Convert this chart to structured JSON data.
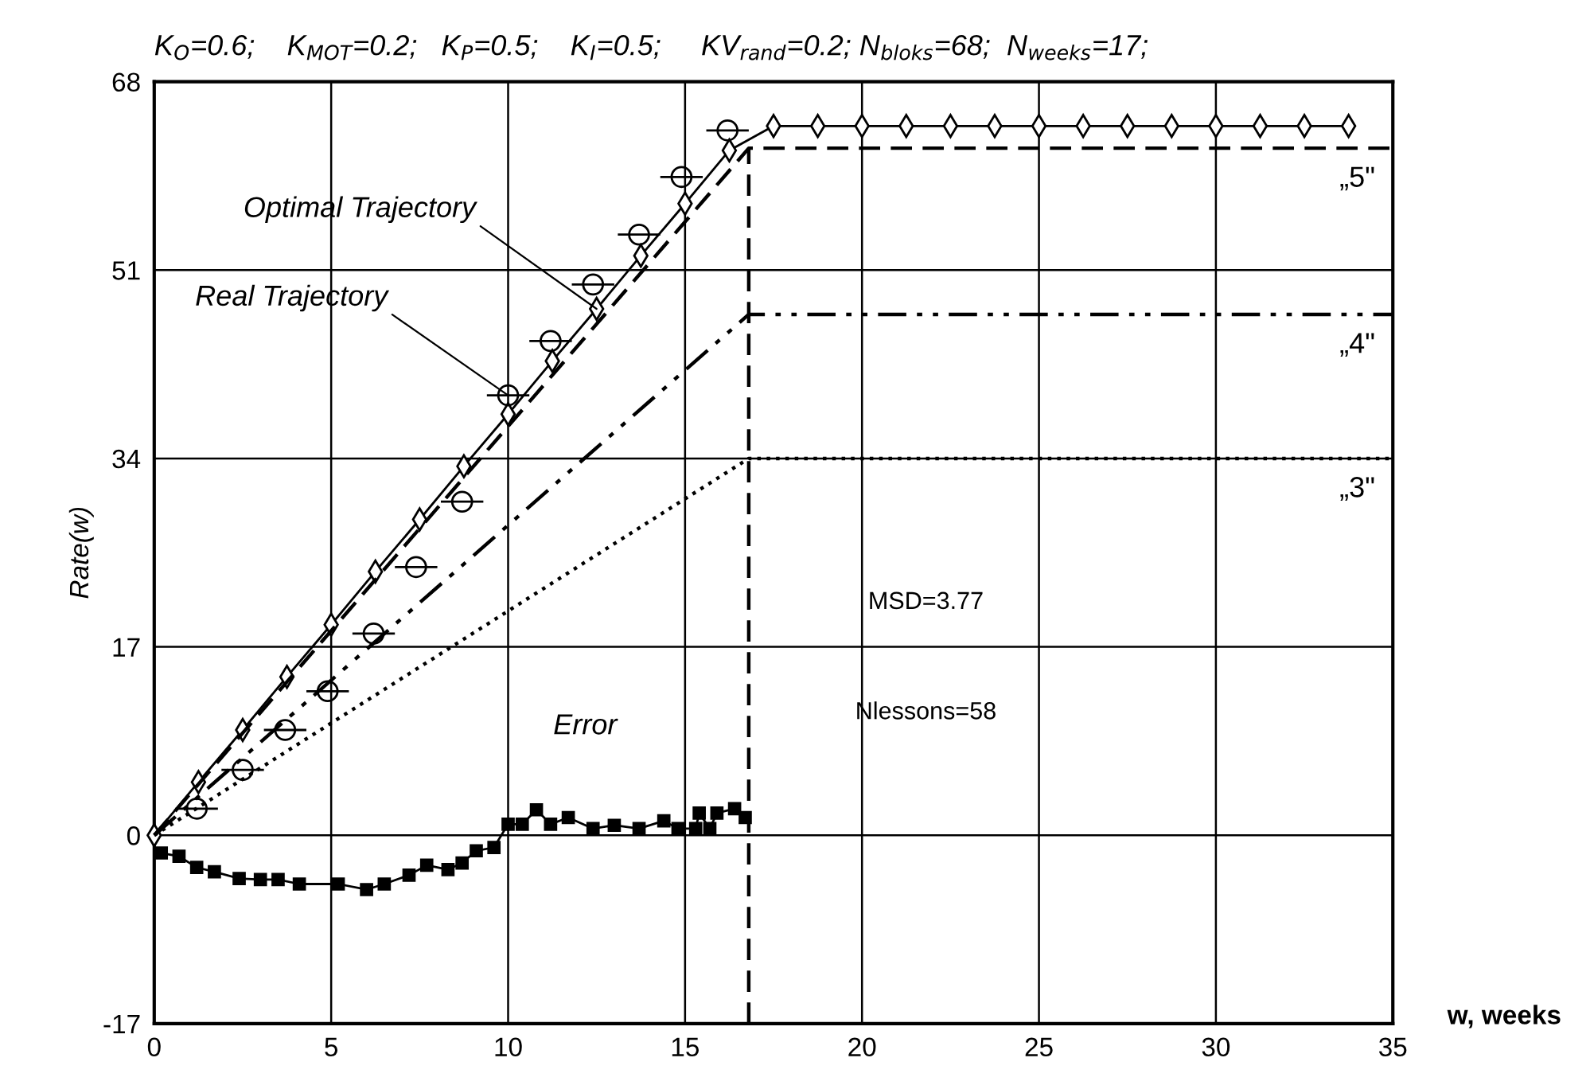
{
  "chart_data": {
    "type": "line",
    "title": "K$_{O}$=0.6;    K$_{MOT}$=0.2;   K$_{P}$=0.5;    K$_{I}$=0.5;     KV$_{rand}$=0.2; N$_{bloks}$=68;  N$_{weeks}$=17;",
    "xlabel": "w, weeks",
    "ylabel": "Rate(w)",
    "xlim": [
      0,
      35
    ],
    "ylim": [
      -17,
      68
    ],
    "xticks": [
      0,
      5,
      10,
      15,
      20,
      25,
      30,
      35
    ],
    "yticks": [
      -17,
      0,
      17,
      34,
      51,
      68
    ],
    "grid": true,
    "legend": false,
    "series": [
      {
        "name": "Optimal Trajectory",
        "color": "#000000",
        "marker": "diamond",
        "line_style": "solid",
        "x": [
          0,
          1.25,
          2.5,
          3.75,
          5,
          6.25,
          7.5,
          8.75,
          10,
          11.25,
          12.5,
          13.75,
          15,
          16.25,
          17.5,
          18.75,
          20,
          21.25,
          22.5,
          23.75,
          25,
          26.25,
          27.5,
          28.75,
          30,
          31.25,
          32.5,
          33.75
        ],
        "values": [
          0,
          4.8,
          9.5,
          14.3,
          19,
          23.8,
          28.5,
          33.3,
          38,
          42.8,
          47.5,
          52.3,
          57,
          61.8,
          64,
          64,
          64,
          64,
          64,
          64,
          64,
          64,
          64,
          64,
          64,
          64,
          64,
          64
        ]
      },
      {
        "name": "Real Trajectory",
        "type": "scatter",
        "color": "#000000",
        "marker": "circle",
        "x": [
          1.2,
          2.5,
          3.7,
          4.9,
          6.2,
          7.4,
          8.7,
          10,
          11.2,
          12.4,
          13.7,
          14.9,
          16.2
        ],
        "values": [
          2.4,
          5.9,
          9.5,
          13,
          18.2,
          24.2,
          30.1,
          39.7,
          44.6,
          49.7,
          54.2,
          59.4,
          63.6
        ],
        "xerrors": [
          0.6,
          0.6,
          0.6,
          0.6,
          0.6,
          0.6,
          0.6,
          0.6,
          0.6,
          0.6,
          0.6,
          0.6,
          0.6
        ]
      },
      {
        "name": "Error",
        "color": "#000000",
        "marker": "square",
        "line_style": "solid",
        "x": [
          0.2,
          0.7,
          1.2,
          1.7,
          2.4,
          3.0,
          3.5,
          4.1,
          5.2,
          6.0,
          6.5,
          7.2,
          7.7,
          8.3,
          8.7,
          9.1,
          9.6,
          10.0,
          10.4,
          10.8,
          11.2,
          11.7,
          12.4,
          13.0,
          13.7,
          14.4,
          14.8,
          15.3,
          15.4,
          15.7,
          15.9,
          16.4,
          16.7
        ],
        "values": [
          -1.6,
          -1.9,
          -2.9,
          -3.3,
          -3.9,
          -4.0,
          -4.0,
          -4.4,
          -4.4,
          -4.9,
          -4.4,
          -3.6,
          -2.7,
          -3.1,
          -2.5,
          -1.4,
          -1.1,
          1.0,
          1.0,
          2.3,
          1.0,
          1.6,
          0.6,
          0.9,
          0.6,
          1.3,
          0.6,
          0.6,
          2.0,
          0.6,
          2.0,
          2.4,
          1.6
        ]
      },
      {
        "name": "„5\"",
        "color": "#000000",
        "marker": "none",
        "line_style": "dashed",
        "x": [
          0,
          16.8,
          35
        ],
        "values": [
          0,
          62,
          62
        ]
      },
      {
        "name": "„4\"",
        "color": "#000000",
        "marker": "none",
        "line_style": "dashdot",
        "x": [
          0,
          16.8,
          35
        ],
        "values": [
          0,
          47,
          47
        ]
      },
      {
        "name": "„3\"",
        "color": "#000000",
        "marker": "none",
        "line_style": "dotted",
        "x": [
          0,
          16.8,
          35
        ],
        "values": [
          0,
          34,
          34
        ]
      },
      {
        "color": "#000000",
        "marker": "none",
        "line_style": "dashed",
        "x": [
          16.8,
          16.8
        ],
        "values": [
          -17,
          62
        ]
      }
    ],
    "annotations": [
      "MSD=3.77",
      "Nlessons=58"
    ]
  }
}
